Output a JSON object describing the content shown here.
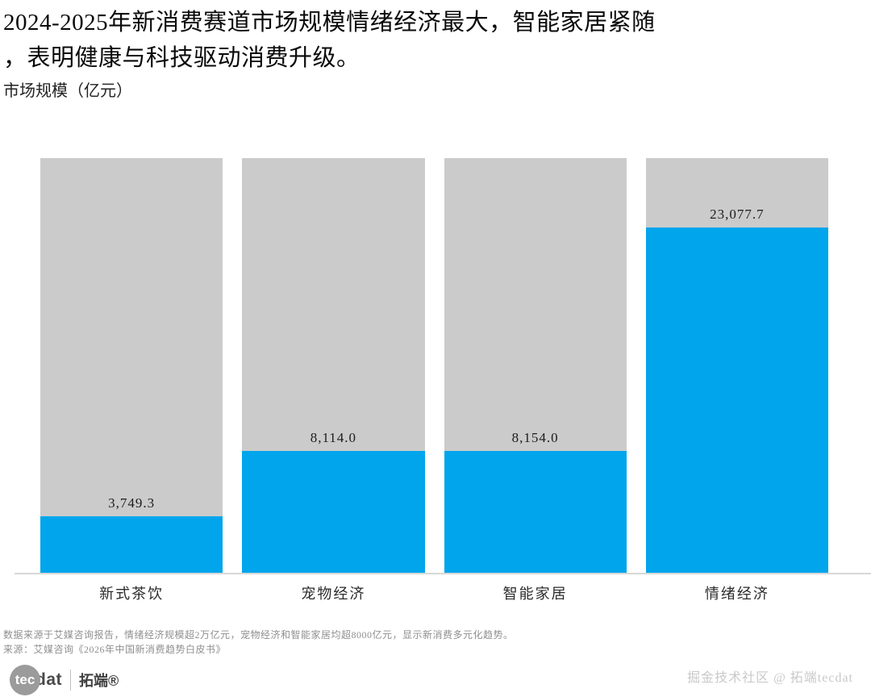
{
  "title": {
    "line1": "2024-2025年新消费赛道市场规模情绪经济最大，智能家居紧随",
    "line2": "，表明健康与科技驱动消费升级。"
  },
  "subtitle": "市场规模（亿元）",
  "chart_data": {
    "type": "bar",
    "title": "2024-2025年新消费赛道市场规模情绪经济最大，智能家居紧随，表明健康与科技驱动消费升级。",
    "ylabel": "市场规模（亿元）",
    "xlabel": "",
    "categories": [
      "新式茶饮",
      "宠物经济",
      "智能家居",
      "情绪经济"
    ],
    "values": [
      3749.3,
      8114.0,
      8154.0,
      23077.7
    ],
    "value_labels": [
      "3,749.3",
      "8,114.0",
      "8,154.0",
      "23,077.7"
    ],
    "ylim": [
      0,
      27700
    ],
    "grid": false,
    "legend": false,
    "bar_color": "#00a5ec",
    "background_bar_color": "#cbcbcb"
  },
  "colors": {
    "bar_blue": "#00a5ec",
    "bar_gray": "#cbcbcb",
    "axis_line": "#d8d8d8"
  },
  "footnotes": {
    "line1": "数据来源于艾媒咨询报告，情绪经济规模超2万亿元，宠物经济和智能家居均超8000亿元，显示新消费多元化趋势。",
    "line2": "来源：艾媒咨询《2026年中国新消费趋势白皮书》"
  },
  "footer": {
    "logo_circle_text": "tec",
    "logo_text": "dat",
    "logo_brand": "拓端®",
    "watermark": "掘金技术社区 @ 拓端tecdat"
  }
}
